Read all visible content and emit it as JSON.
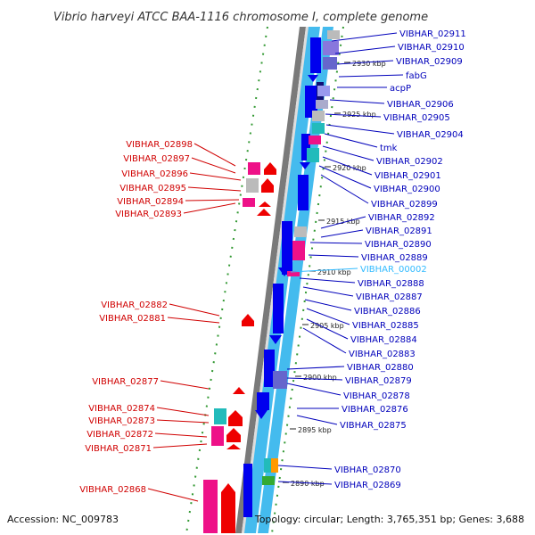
{
  "title": "Vibrio harveyi ATCC BAA-1116 chromosome I, complete genome",
  "footer": {
    "accession": "Accession: NC_009783",
    "topology": "Topology: circular; Length: 3,765,351 bp; Genes: 3,688"
  },
  "colors": {
    "left_label": "#d00000",
    "right_label": "#0000bb",
    "highlight_label": "#33bbff",
    "backbone": "#777777",
    "strand": "#44bbee",
    "gene_blue": "#0000ee",
    "gene_red": "#ee0000",
    "gene_pink": "#ee1188",
    "gene_cyan": "#22bbbb",
    "gene_gray": "#bbbbbb",
    "gene_purple": "#6666cc",
    "gene_orange": "#ff9900",
    "gene_green": "#33aa33",
    "dots": "#339933"
  },
  "ticks": [
    {
      "label": "2930 kbp",
      "kbp": 2930
    },
    {
      "label": "2925 kbp",
      "kbp": 2925
    },
    {
      "label": "2920 kbp",
      "kbp": 2920
    },
    {
      "label": "2915 kbp",
      "kbp": 2915
    },
    {
      "label": "2910 kbp",
      "kbp": 2910
    },
    {
      "label": "2905 kbp",
      "kbp": 2905
    },
    {
      "label": "2900 kbp",
      "kbp": 2900
    },
    {
      "label": "2895 kbp",
      "kbp": 2895
    },
    {
      "label": "2890 kbp",
      "kbp": 2890
    }
  ],
  "right_labels": [
    {
      "text": "VIBHAR_02911",
      "kind": "normal"
    },
    {
      "text": "VIBHAR_02910",
      "kind": "normal"
    },
    {
      "text": "VIBHAR_02909",
      "kind": "normal"
    },
    {
      "text": "fabG",
      "kind": "normal"
    },
    {
      "text": "acpP",
      "kind": "normal"
    },
    {
      "text": "VIBHAR_02906",
      "kind": "normal"
    },
    {
      "text": "VIBHAR_02905",
      "kind": "normal"
    },
    {
      "text": "VIBHAR_02904",
      "kind": "normal"
    },
    {
      "text": "tmk",
      "kind": "normal"
    },
    {
      "text": "VIBHAR_02902",
      "kind": "normal"
    },
    {
      "text": "VIBHAR_02901",
      "kind": "normal"
    },
    {
      "text": "VIBHAR_02900",
      "kind": "normal"
    },
    {
      "text": "VIBHAR_02899",
      "kind": "normal"
    },
    {
      "text": "VIBHAR_02892",
      "kind": "normal"
    },
    {
      "text": "VIBHAR_02891",
      "kind": "normal"
    },
    {
      "text": "VIBHAR_02890",
      "kind": "normal"
    },
    {
      "text": "VIBHAR_02889",
      "kind": "normal"
    },
    {
      "text": "VIBHAR_00002",
      "kind": "highlight"
    },
    {
      "text": "VIBHAR_02888",
      "kind": "normal"
    },
    {
      "text": "VIBHAR_02887",
      "kind": "normal"
    },
    {
      "text": "VIBHAR_02886",
      "kind": "normal"
    },
    {
      "text": "VIBHAR_02885",
      "kind": "normal"
    },
    {
      "text": "VIBHAR_02884",
      "kind": "normal"
    },
    {
      "text": "VIBHAR_02883",
      "kind": "normal"
    },
    {
      "text": "VIBHAR_02880",
      "kind": "normal"
    },
    {
      "text": "VIBHAR_02879",
      "kind": "normal"
    },
    {
      "text": "VIBHAR_02878",
      "kind": "normal"
    },
    {
      "text": "VIBHAR_02876",
      "kind": "normal"
    },
    {
      "text": "VIBHAR_02875",
      "kind": "normal"
    },
    {
      "text": "VIBHAR_02870",
      "kind": "normal"
    },
    {
      "text": "VIBHAR_02869",
      "kind": "normal"
    }
  ],
  "left_labels": [
    {
      "text": "VIBHAR_02898"
    },
    {
      "text": "VIBHAR_02897"
    },
    {
      "text": "VIBHAR_02896"
    },
    {
      "text": "VIBHAR_02895"
    },
    {
      "text": "VIBHAR_02894"
    },
    {
      "text": "VIBHAR_02893"
    },
    {
      "text": "VIBHAR_02882"
    },
    {
      "text": "VIBHAR_02881"
    },
    {
      "text": "VIBHAR_02877"
    },
    {
      "text": "VIBHAR_02874"
    },
    {
      "text": "VIBHAR_02873"
    },
    {
      "text": "VIBHAR_02872"
    },
    {
      "text": "VIBHAR_02871"
    },
    {
      "text": "VIBHAR_02868"
    }
  ]
}
